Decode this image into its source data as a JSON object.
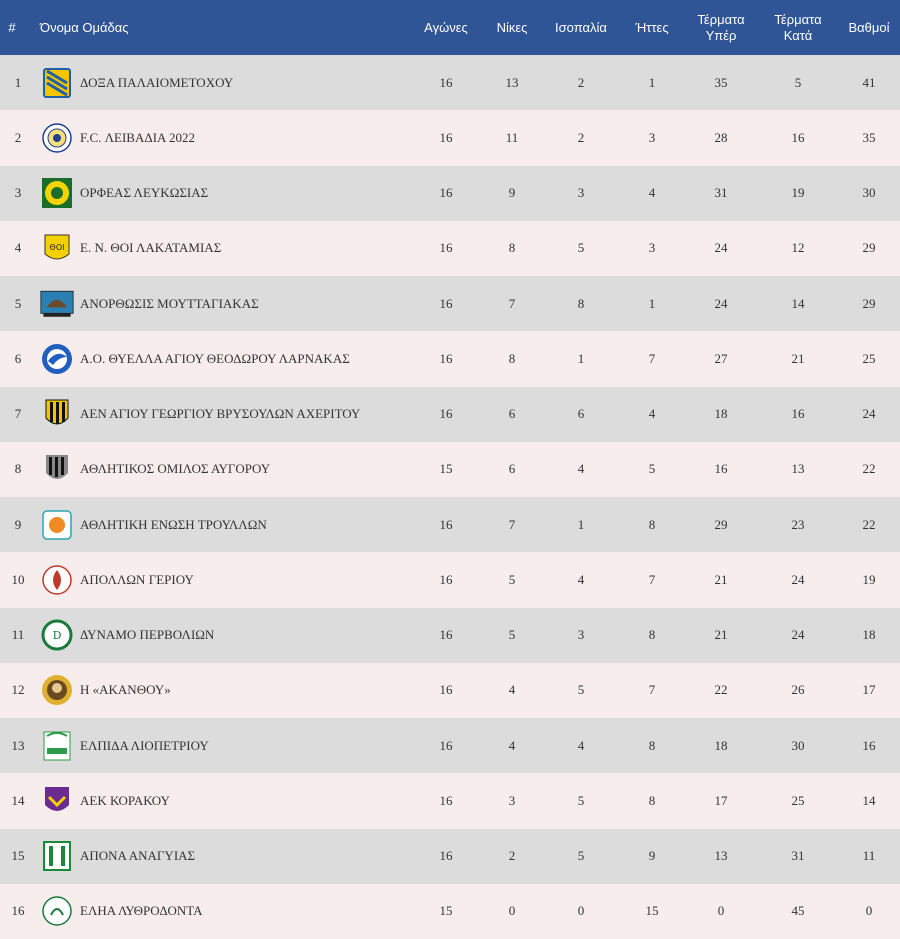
{
  "table": {
    "headers": {
      "pos": "#",
      "team": "Όνομα Ομάδας",
      "played": "Αγώνες",
      "wins": "Νίκες",
      "draws": "Ισοπαλία",
      "losses": "Ήττες",
      "goals_for_1": "Τέρματα",
      "goals_for_2": "Υπέρ",
      "goals_against_1": "Τέρματα",
      "goals_against_2": "Κατά",
      "points": "Βαθμοί"
    },
    "colors": {
      "header_bg": "#2f5597",
      "row_odd": "#dcdcdc",
      "row_even": "#f7eded"
    },
    "rows": [
      {
        "pos": "1",
        "team": "ΔΟΞΑ ΠΑΛΑΙΟΜΕΤΟΧΟΥ",
        "played": "16",
        "wins": "13",
        "draws": "2",
        "losses": "1",
        "gf": "35",
        "ga": "5",
        "pts": "41",
        "logo": "doxa-crest-icon"
      },
      {
        "pos": "2",
        "team": "F.C. ΛΕΙΒΑΔΙΑ 2022",
        "played": "16",
        "wins": "11",
        "draws": "2",
        "losses": "3",
        "gf": "28",
        "ga": "16",
        "pts": "35",
        "logo": "livadia-crest-icon"
      },
      {
        "pos": "3",
        "team": "ΟΡΦΕΑΣ ΛΕΥΚΩΣΙΑΣ",
        "played": "16",
        "wins": "9",
        "draws": "3",
        "losses": "4",
        "gf": "31",
        "ga": "19",
        "pts": "30",
        "logo": "orfeas-crest-icon"
      },
      {
        "pos": "4",
        "team": "Ε. Ν. ΘΟΙ ΛΑΚΑΤΑΜΙΑΣ",
        "played": "16",
        "wins": "8",
        "draws": "5",
        "losses": "3",
        "gf": "24",
        "ga": "12",
        "pts": "29",
        "logo": "thoi-crest-icon"
      },
      {
        "pos": "5",
        "team": "ΑΝΟΡΘΩΣΙΣ ΜΟΥΤΤΑΓΙΑΚΑΣ",
        "played": "16",
        "wins": "7",
        "draws": "8",
        "losses": "1",
        "gf": "24",
        "ga": "14",
        "pts": "29",
        "logo": "anorthosis-crest-icon"
      },
      {
        "pos": "6",
        "team": "Α.Ο. ΘΥΕΛΛΑ ΑΓΙΟΥ ΘΕΟΔΩΡΟΥ ΛΑΡΝΑΚΑΣ",
        "played": "16",
        "wins": "8",
        "draws": "1",
        "losses": "7",
        "gf": "27",
        "ga": "21",
        "pts": "25",
        "logo": "thyella-crest-icon"
      },
      {
        "pos": "7",
        "team": "ΑΕΝ ΑΓΙΟΥ ΓΕΩΡΓΙΟΥ ΒΡΥΣΟΥΛΩΝ ΑΧΕΡΙΤΟΥ",
        "played": "16",
        "wins": "6",
        "draws": "6",
        "losses": "4",
        "gf": "18",
        "ga": "16",
        "pts": "24",
        "logo": "aen-crest-icon"
      },
      {
        "pos": "8",
        "team": "ΑΘΛΗΤΙΚΟΣ ΟΜΙΛΟΣ ΑΥΓΟΡΟΥ",
        "played": "15",
        "wins": "6",
        "draws": "4",
        "losses": "5",
        "gf": "16",
        "ga": "13",
        "pts": "22",
        "logo": "avgorou-crest-icon"
      },
      {
        "pos": "9",
        "team": "ΑΘΛΗΤΙΚΗ ΕΝΩΣΗ ΤΡΟΥΛΛΩΝ",
        "played": "16",
        "wins": "7",
        "draws": "1",
        "losses": "8",
        "gf": "29",
        "ga": "23",
        "pts": "22",
        "logo": "troullon-crest-icon"
      },
      {
        "pos": "10",
        "team": "ΑΠΟΛΛΩΝ ΓΕΡΙΟΥ",
        "played": "16",
        "wins": "5",
        "draws": "4",
        "losses": "7",
        "gf": "21",
        "ga": "24",
        "pts": "19",
        "logo": "apollon-crest-icon"
      },
      {
        "pos": "11",
        "team": "ΔΥΝΑΜΟ ΠΕΡΒΟΛΙΩΝ",
        "played": "16",
        "wins": "5",
        "draws": "3",
        "losses": "8",
        "gf": "21",
        "ga": "24",
        "pts": "18",
        "logo": "dynamo-crest-icon"
      },
      {
        "pos": "12",
        "team": "Η «ΑΚΑΝΘΟΥ»",
        "played": "16",
        "wins": "4",
        "draws": "5",
        "losses": "7",
        "gf": "22",
        "ga": "26",
        "pts": "17",
        "logo": "akanthou-crest-icon"
      },
      {
        "pos": "13",
        "team": "ΕΛΠΙΔΑ ΛΙΟΠΕΤΡΙΟΥ",
        "played": "16",
        "wins": "4",
        "draws": "4",
        "losses": "8",
        "gf": "18",
        "ga": "30",
        "pts": "16",
        "logo": "elpida-crest-icon"
      },
      {
        "pos": "14",
        "team": "ΑΕΚ ΚΟΡΑΚΟΥ",
        "played": "16",
        "wins": "3",
        "draws": "5",
        "losses": "8",
        "gf": "17",
        "ga": "25",
        "pts": "14",
        "logo": "aek-crest-icon"
      },
      {
        "pos": "15",
        "team": "ΑΠΟΝΑ ΑΝΑΓΥΙΑΣ",
        "played": "16",
        "wins": "2",
        "draws": "5",
        "losses": "9",
        "gf": "13",
        "ga": "31",
        "pts": "11",
        "logo": "apona-crest-icon"
      },
      {
        "pos": "16",
        "team": "ΕΛΗΑ ΛΥΘΡΟΔΟΝΤΑ",
        "played": "15",
        "wins": "0",
        "draws": "0",
        "losses": "15",
        "gf": "0",
        "ga": "45",
        "pts": "0",
        "logo": "elia-crest-icon"
      }
    ]
  }
}
